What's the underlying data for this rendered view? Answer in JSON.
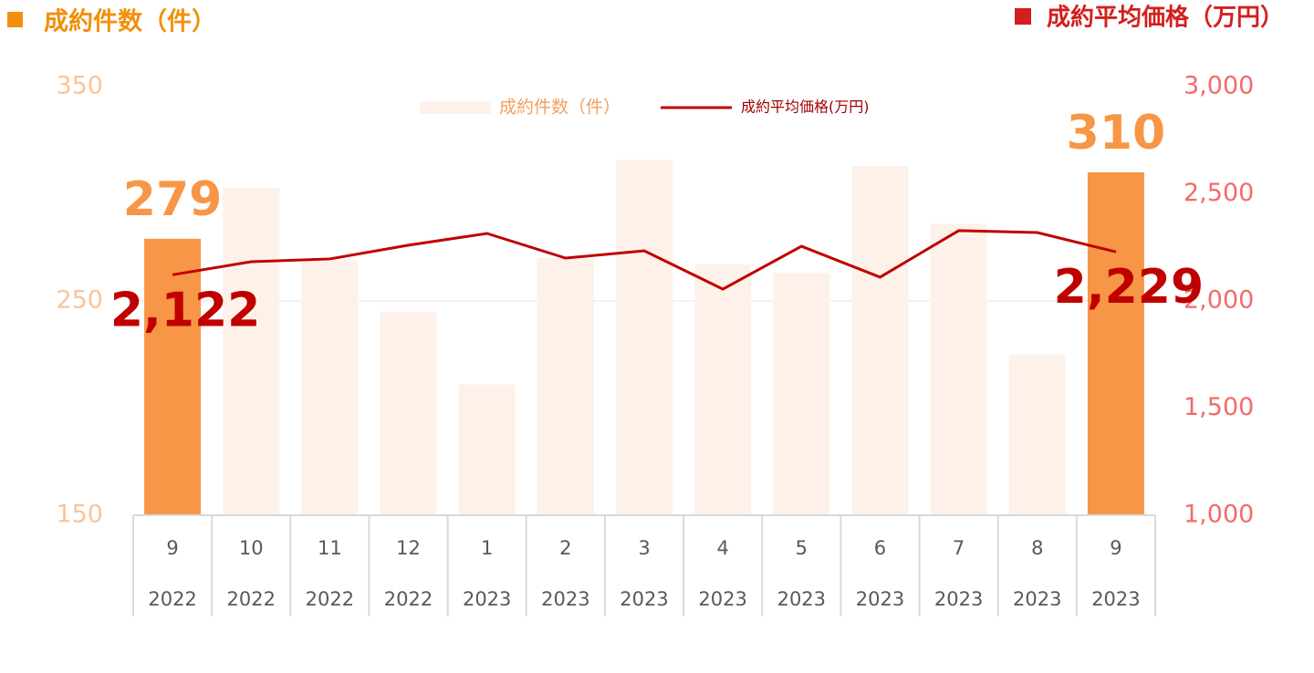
{
  "chart_data": {
    "type": "bar_line",
    "left_axis_title": "成約件数（件）",
    "right_axis_title": "成約平均価格（万円）",
    "categories": [
      "9",
      "10",
      "11",
      "12",
      "1",
      "2",
      "3",
      "4",
      "5",
      "6",
      "7",
      "8",
      "9"
    ],
    "category_years": [
      "2022",
      "2022",
      "2022",
      "2022",
      "2023",
      "2023",
      "2023",
      "2023",
      "2023",
      "2023",
      "2023",
      "2023",
      "2023"
    ],
    "series": [
      {
        "name": "成約件数（件）",
        "type": "bar",
        "color": "#fdf1e9",
        "highlight_color": "#f79646",
        "highlight": [
          0,
          12
        ],
        "values": [
          279,
          303,
          269,
          245,
          211,
          270,
          316,
          267,
          263,
          313,
          286,
          225,
          310
        ]
      },
      {
        "name": "成約平均価格(万円)",
        "type": "line",
        "axis": "y2",
        "color": "#c00000",
        "values": [
          2122,
          2183,
          2196,
          2260,
          2315,
          2200,
          2234,
          2055,
          2255,
          2111,
          2328,
          2319,
          2229
        ],
        "value_labels": [
          "2,122",
          null,
          null,
          null,
          null,
          null,
          null,
          null,
          null,
          null,
          null,
          null,
          "2,229"
        ]
      }
    ],
    "ylim": [
      150,
      350
    ],
    "yticks": [
      150,
      250,
      350
    ],
    "y2lim": [
      1000,
      3000
    ],
    "y2ticks": [
      {
        "value": 1000,
        "label": "1,000"
      },
      {
        "value": 1500,
        "label": "1,500"
      },
      {
        "value": 2000,
        "label": "2,000"
      },
      {
        "value": 2500,
        "label": "2,500"
      },
      {
        "value": 3000,
        "label": "3,000"
      }
    ],
    "grid": true
  }
}
